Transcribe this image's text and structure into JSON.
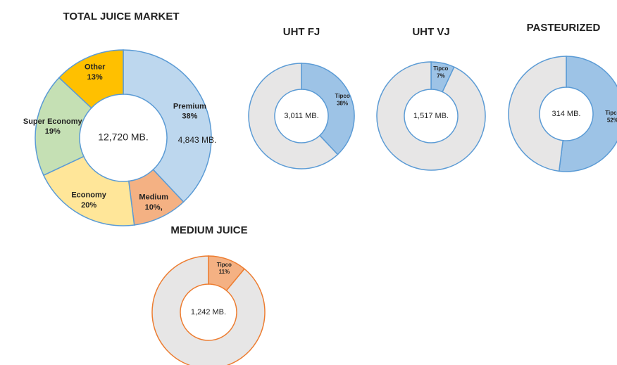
{
  "chart_data": [
    {
      "type": "donut",
      "title": "TOTAL JUICE MARKET",
      "center_label": "12,720 MB.",
      "annotation": "4,843 MB.",
      "categories": [
        "Premium",
        "Medium",
        "Economy",
        "Super Economy",
        "Other"
      ],
      "values": [
        38,
        10,
        20,
        19,
        13
      ],
      "value_labels": [
        "38%",
        "10%,",
        "20%",
        "19%",
        "13%"
      ],
      "colors": [
        "#bdd7ee",
        "#f4b183",
        "#ffe699",
        "#c5e0b4",
        "#ffc000"
      ],
      "stroke": "#5b9bd5"
    },
    {
      "type": "donut",
      "title": "UHT FJ",
      "center_label": "3,011 MB.",
      "categories": [
        "Tipco",
        null
      ],
      "values": [
        38,
        62
      ],
      "value_labels": [
        "38%",
        null
      ],
      "colors": [
        "#9dc3e6",
        "#e7e6e6"
      ],
      "stroke": "#5b9bd5"
    },
    {
      "type": "donut",
      "title": "UHT VJ",
      "center_label": "1,517 MB.",
      "categories": [
        "Tipco",
        null
      ],
      "values": [
        7,
        93
      ],
      "value_labels": [
        "7%",
        null
      ],
      "colors": [
        "#9dc3e6",
        "#e7e6e6"
      ],
      "stroke": "#5b9bd5"
    },
    {
      "type": "donut",
      "title": "PASTEURIZED",
      "center_label": "314 MB.",
      "categories": [
        "Tipco",
        null
      ],
      "values": [
        52,
        48
      ],
      "value_labels": [
        "52%",
        null
      ],
      "colors": [
        "#9dc3e6",
        "#e7e6e6"
      ],
      "stroke": "#5b9bd5"
    },
    {
      "type": "donut",
      "title": "MEDIUM JUICE",
      "center_label": "1,242 MB.",
      "categories": [
        "Tipco",
        null
      ],
      "values": [
        11,
        89
      ],
      "value_labels": [
        "11%",
        null
      ],
      "colors": [
        "#f4b183",
        "#e7e6e6"
      ],
      "stroke": "#ed7d31"
    }
  ]
}
